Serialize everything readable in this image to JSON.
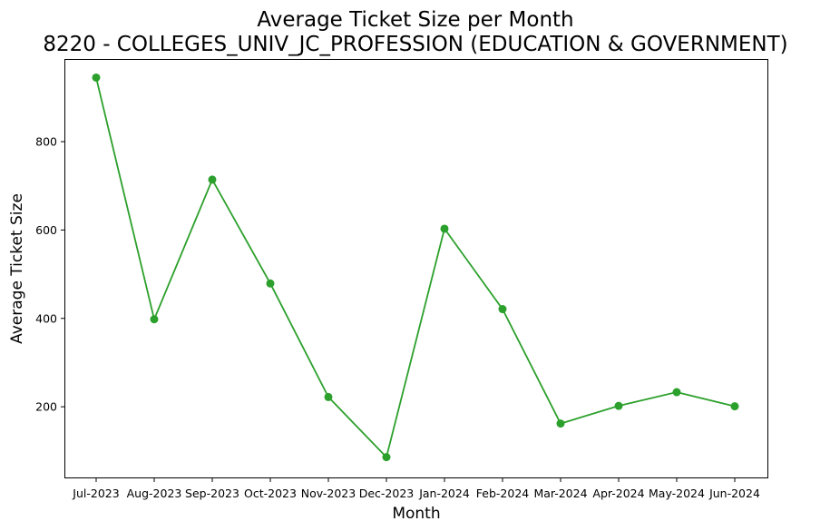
{
  "chart_data": {
    "type": "line",
    "title": "Average Ticket Size per Month",
    "subtitle": "8220 - COLLEGES_UNIV_JC_PROFESSION (EDUCATION & GOVERNMENT)",
    "xlabel": "Month",
    "ylabel": "Average Ticket Size",
    "categories": [
      "Jul-2023",
      "Aug-2023",
      "Sep-2023",
      "Oct-2023",
      "Nov-2023",
      "Dec-2023",
      "Jan-2024",
      "Feb-2024",
      "Mar-2024",
      "Apr-2024",
      "May-2024",
      "Jun-2024"
    ],
    "yticks": [
      200,
      400,
      600,
      800
    ],
    "ylim": [
      40,
      985
    ],
    "grid": false,
    "series": [
      {
        "color": "#2ca02c",
        "marker": "circle",
        "values": [
          945,
          398,
          714,
          479,
          222,
          86,
          603,
          421,
          162,
          202,
          233,
          201
        ]
      }
    ]
  }
}
